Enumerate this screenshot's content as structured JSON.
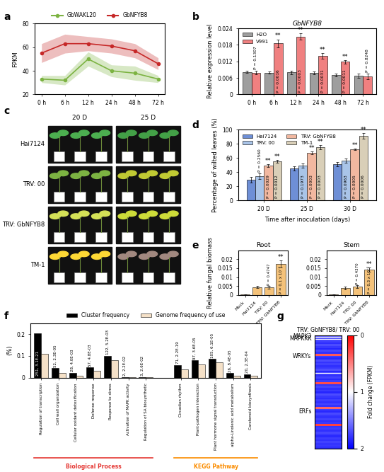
{
  "chart_data": [
    {
      "type": "line",
      "panel_label": "a",
      "categories": [
        "0 h",
        "6 h",
        "12 h",
        "24 h",
        "48 h",
        "72 h"
      ],
      "ylabel": "FPKM",
      "ylim": [
        20,
        80
      ],
      "yticks": [
        20,
        40,
        60,
        80
      ],
      "legend": "top",
      "series": [
        {
          "name": "GbWAKL20",
          "color": "#7cb342",
          "values": [
            33,
            32,
            50,
            40,
            38,
            33
          ],
          "errors": [
            3,
            4,
            6,
            5,
            6,
            3
          ]
        },
        {
          "name": "GbNFYB8",
          "color": "#c62828",
          "values": [
            55,
            63,
            63,
            61,
            57,
            46
          ],
          "errors": [
            8,
            8,
            6,
            6,
            6,
            5
          ]
        }
      ]
    },
    {
      "type": "bar",
      "panel_label": "b",
      "title": "GbNFYB8",
      "categories": [
        "0 h",
        "6 h",
        "12 h",
        "24 h",
        "48 h",
        "72 h"
      ],
      "ylabel": "Relative expression level",
      "ylim": [
        0,
        0.024
      ],
      "yticks": [
        0,
        0.006,
        0.012,
        0.018,
        0.024
      ],
      "legend": "upper left",
      "series": [
        {
          "name": "H2O",
          "color": "#9e9e9e",
          "values": [
            0.0081,
            0.0079,
            0.008,
            0.0078,
            0.007,
            0.0068
          ],
          "errors": [
            0.0004,
            0.0004,
            0.0006,
            0.0005,
            0.0006,
            0.0007
          ]
        },
        {
          "name": "V991",
          "color": "#f08080",
          "values": [
            0.0079,
            0.0185,
            0.021,
            0.014,
            0.0118,
            0.0066
          ],
          "errors": [
            0.0006,
            0.0015,
            0.0012,
            0.001,
            0.0006,
            0.001
          ],
          "annotations": [
            "P = 0.1307",
            "P = 0.0016",
            "P = 0.0003",
            "P = 0.0031",
            "P = 0.0011",
            "P = 0.8248"
          ],
          "significance": [
            null,
            "**",
            "**",
            "**",
            "**",
            null
          ]
        }
      ]
    },
    {
      "type": "image",
      "panel_label": "c",
      "columns": [
        "20 D",
        "25 D"
      ],
      "rows": [
        "Hai7124",
        "TRV: 00",
        "TRV: GbNFYB8",
        "TM-1"
      ]
    },
    {
      "type": "bar",
      "panel_label": "d",
      "categories": [
        "20 D",
        "25 D",
        "30 D"
      ],
      "xlabel": "Time after inoculation (days)",
      "ylabel": "Percentage of wilted leaves (%)",
      "ylim": [
        0,
        100
      ],
      "yticks": [
        0,
        20,
        40,
        60,
        80,
        100
      ],
      "legend": "upper left",
      "series": [
        {
          "name": "Hai7124",
          "color": "#6e8fd6",
          "values": [
            29,
            45,
            51
          ],
          "errors": [
            4,
            3,
            3
          ]
        },
        {
          "name": "TRV: 00",
          "color": "#a9c4e8",
          "values": [
            34,
            49,
            56
          ],
          "errors": [
            4,
            3,
            3
          ],
          "annotations": [
            "P = 0.2560",
            "P = 0.1973",
            "P = 0.0963"
          ]
        },
        {
          "name": "TRV: GbNFYB8",
          "color": "#f2b8a0",
          "values": [
            49,
            67,
            72
          ],
          "errors": [
            2,
            2,
            1
          ],
          "annotations": [
            "P = 0.0029",
            "P = 0.0003",
            "P = 0.0005"
          ],
          "significance": [
            "**",
            "**",
            "**"
          ]
        },
        {
          "name": "TM-1",
          "color": "#d9cfb8",
          "values": [
            55,
            75,
            91
          ],
          "errors": [
            2,
            3,
            4
          ],
          "annotations": [
            "P = 0.0012",
            "P = 0.0003",
            "P = 0.0006"
          ],
          "significance": [
            "**",
            "**",
            "**"
          ]
        }
      ]
    },
    {
      "type": "bar",
      "panel_label": "e",
      "title": "Root",
      "categories": [
        "Mock",
        "Hai7124",
        "TRV: 00",
        "TRV: GbNFYB8"
      ],
      "ylabel": "Relative fungal biomass",
      "ylim": [
        0,
        0.025
      ],
      "yticks": [
        0,
        0.005,
        0.01,
        0.015,
        0.02
      ],
      "color": "#f4c27a",
      "values": [
        0.0002,
        0.0044,
        0.0042,
        0.0172
      ],
      "errors": [
        0.0001,
        0.0006,
        0.0007,
        0.002
      ],
      "annotations": [
        null,
        null,
        "P = 0.4747",
        "P = 0.1 x 10⁻⁴"
      ],
      "significance": [
        null,
        null,
        null,
        "**"
      ]
    },
    {
      "type": "bar",
      "title": "Stem",
      "categories": [
        "Mock",
        "Hai7124",
        "TRV: 00",
        "TRV: GbNFYB8"
      ],
      "ylim": [
        0,
        0.025
      ],
      "yticks": [
        0,
        0.005,
        0.01,
        0.015,
        0.02
      ],
      "color": "#f4c27a",
      "values": [
        0.0002,
        0.004,
        0.0045,
        0.014
      ],
      "errors": [
        0.0001,
        0.0007,
        0.0008,
        0.0012
      ],
      "annotations": [
        null,
        null,
        "P = 0.4370",
        "P = 0.3 x 10⁻⁴"
      ],
      "significance": [
        null,
        null,
        null,
        "**"
      ]
    },
    {
      "type": "bar",
      "panel_label": "f",
      "ylabel": "(%)",
      "ylim": [
        0,
        0.25
      ],
      "yticks": [
        0,
        0.1,
        0.2
      ],
      "legend": "top",
      "category_groups": [
        {
          "label": "Biological Process",
          "color": "#e53935",
          "categories": [
            "Regulation of transcription",
            "Cell wall organization",
            "Cellular oxidant detoxification",
            "Defense response",
            "Response to stress",
            "Activation of MAPK activity",
            "Regulation of SA biosynthetic"
          ]
        },
        {
          "label": "KEGG Pathway",
          "color": "#fb8c00",
          "categories": [
            "Circadian rhythm",
            "Plant-pathogen interaction",
            "Plant hormone signal transduction",
            "alpha-Linolenic acid metabolism",
            "Carotenoid biosynthesis"
          ]
        }
      ],
      "series": [
        {
          "name": "Cluster frequency",
          "color": "#000000",
          "values": [
            0.205,
            0.043,
            0.023,
            0.047,
            0.1,
            0.002,
            0.003,
            0.058,
            0.08,
            0.086,
            0.021,
            0.016
          ],
          "annotations": [
            "251, 3.1E-21",
            "52, 2.3E-05",
            "28, 4.0E-03",
            "57, 4.8E-03",
            "122, 5.2E-03",
            "2, 2.2E-02",
            "3, 2.6E-02",
            "71, 2.2E-19",
            "97, 3.6E-05",
            "105, 6.1E-05",
            "26, 8.4E-05",
            "20, 2.3E-04"
          ]
        },
        {
          "name": "Genome frequency of use",
          "color": "#f5e1c8",
          "values": [
            0.11,
            0.02,
            0.01,
            0.03,
            0.08,
            0.0005,
            0.001,
            0.038,
            0.062,
            0.07,
            0.01,
            0.008
          ]
        }
      ]
    },
    {
      "type": "heatmap",
      "panel_label": "g",
      "title": "TRV: GbNFYB8/ TRV: 00",
      "row_groups": [
        {
          "label": "MAPK3",
          "values": [
            1.72
          ]
        },
        {
          "label": "MAPKKK",
          "values": [
            1.68
          ]
        },
        {
          "label": "WRKYs",
          "values": [
            1.8,
            1.75,
            1.82,
            1.7,
            1.78,
            1.85,
            1.72,
            1.8,
            0.35,
            1.76,
            1.83,
            1.7,
            1.79,
            1.74,
            1.81,
            1.77,
            1.69,
            1.84
          ]
        },
        {
          "label": "ERFs",
          "values": [
            1.78,
            1.8,
            1.74,
            1.83,
            1.76,
            0.3,
            1.79,
            1.72,
            1.81,
            1.77,
            1.85,
            1.7,
            1.78,
            1.82,
            1.75,
            1.8,
            1.73,
            1.79,
            0.4,
            1.76,
            1.84,
            1.71,
            1.78,
            1.8,
            1.74,
            1.82,
            1.77,
            0.25,
            1.79,
            1.75,
            1.81,
            1.72,
            1.78,
            1.83,
            1.76,
            1.8,
            1.74,
            1.79,
            1.77,
            1.82
          ]
        }
      ],
      "colorbar": {
        "label": "Fold change (FPKM)",
        "range": [
          0,
          2
        ],
        "ticks": [
          0,
          1,
          2
        ]
      }
    }
  ]
}
